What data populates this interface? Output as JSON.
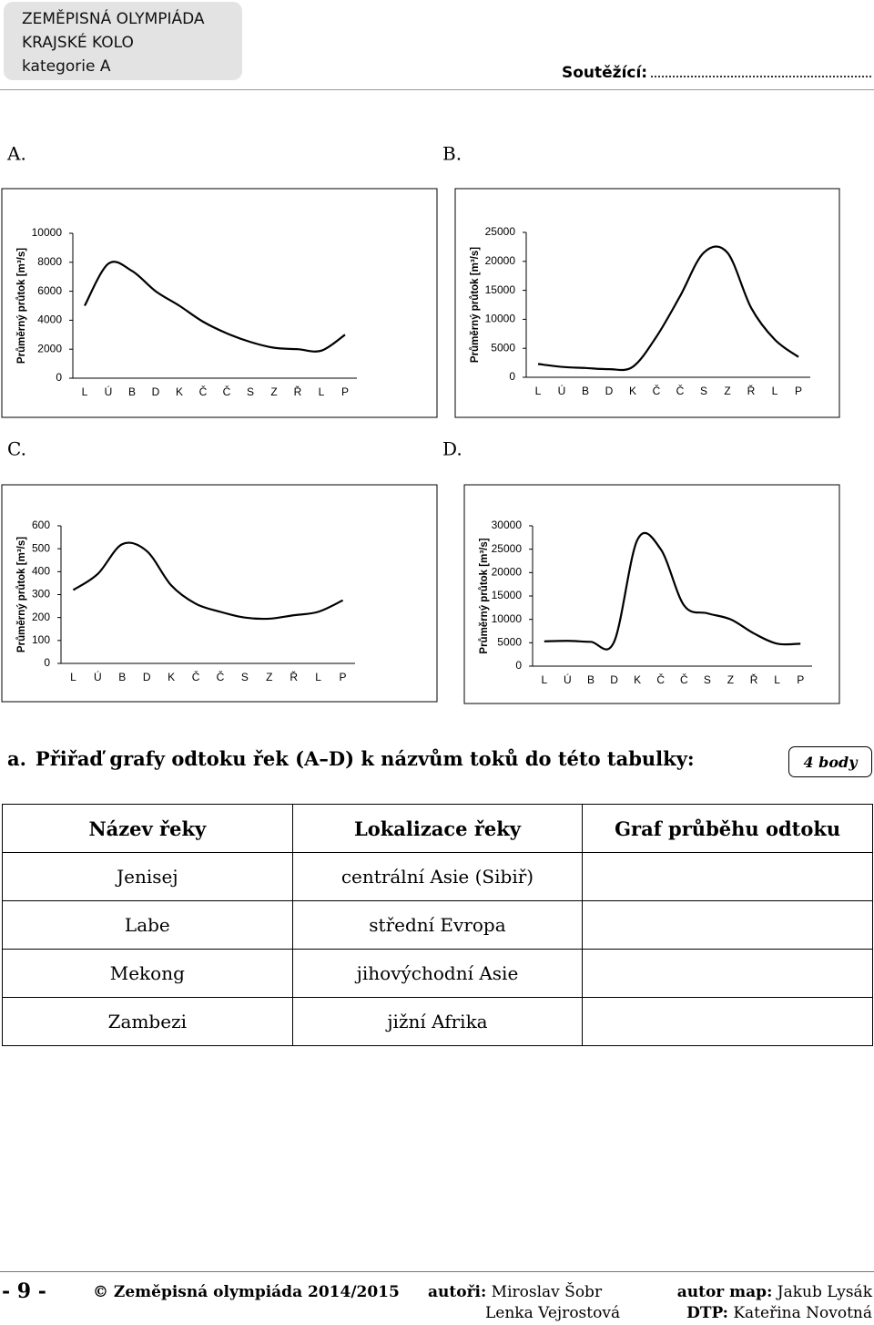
{
  "header": {
    "title": "ZEMĚPISNÁ OLYMPIÁDA",
    "round": "KRAJSKÉ KOLO",
    "category": "kategorie A",
    "contestant": "Soutěžící:"
  },
  "chart_data": [
    {
      "type": "line",
      "label": "A.",
      "ylabel": "Průměrný průtok [m³/s]",
      "categories": [
        "L",
        "Ú",
        "B",
        "D",
        "K",
        "Č",
        "Č",
        "S",
        "Z",
        "Ř",
        "L",
        "P"
      ],
      "values": [
        5000,
        7900,
        7400,
        6000,
        5000,
        3900,
        3100,
        2500,
        2100,
        2000,
        1900,
        3000
      ],
      "color": "#000000",
      "ylim": [
        0,
        10000
      ],
      "yticks": [
        0,
        2000,
        4000,
        6000,
        8000,
        10000
      ]
    },
    {
      "type": "line",
      "label": "B.",
      "ylabel": "Průměrný průtok [m³/s]",
      "categories": [
        "L",
        "Ú",
        "B",
        "D",
        "K",
        "Č",
        "Č",
        "S",
        "Z",
        "Ř",
        "L",
        "P"
      ],
      "values": [
        2300,
        1800,
        1600,
        1400,
        1800,
        7000,
        14000,
        21500,
        21500,
        12000,
        6500,
        3500
      ],
      "color": "#000000",
      "ylim": [
        0,
        25000
      ],
      "yticks": [
        0,
        5000,
        10000,
        15000,
        20000,
        25000
      ]
    },
    {
      "type": "line",
      "label": "C.",
      "ylabel": "Průměrný průtok [m³/s]",
      "categories": [
        "L",
        "Ú",
        "B",
        "D",
        "K",
        "Č",
        "Č",
        "S",
        "Z",
        "Ř",
        "L",
        "P"
      ],
      "values": [
        320,
        390,
        520,
        490,
        340,
        260,
        225,
        200,
        195,
        210,
        225,
        275
      ],
      "color": "#000000",
      "ylim": [
        0,
        600
      ],
      "yticks": [
        0,
        100,
        200,
        300,
        400,
        500,
        600
      ]
    },
    {
      "type": "line",
      "label": "D.",
      "ylabel": "Průměrný průtok [m³/s]",
      "categories": [
        "L",
        "Ú",
        "B",
        "D",
        "K",
        "Č",
        "Č",
        "S",
        "Z",
        "Ř",
        "L",
        "P"
      ],
      "values": [
        5300,
        5400,
        5200,
        5200,
        27000,
        25000,
        13000,
        11300,
        10000,
        7000,
        4800,
        4800
      ],
      "color": "#000000",
      "ylim": [
        0,
        30000
      ],
      "yticks": [
        0,
        5000,
        10000,
        15000,
        20000,
        25000,
        30000
      ]
    }
  ],
  "task": {
    "letter": "a.",
    "text": "Přiřaď grafy odtoku řek (A–D) k názvům toků do této tabulky:",
    "points": "4 body"
  },
  "table": {
    "header": [
      "Název řeky",
      "Lokalizace řeky",
      "Graf průběhu odtoku"
    ],
    "rows": [
      [
        "Jenisej",
        "centrální Asie (Sibiř)"
      ],
      [
        "Labe",
        "střední Evropa"
      ],
      [
        "Mekong",
        "jihovýchodní Asie"
      ],
      [
        "Zambezi",
        "jižní Afrika"
      ]
    ]
  },
  "footer": {
    "page": "- 9 -",
    "copyright": "© Zeměpisná olympiáda 2014/2015",
    "authors_label": "autoři:",
    "authors": [
      "Miroslav Šobr",
      "Lenka Vejrostová"
    ],
    "maps_label": "autor map:",
    "maps": "Jakub Lysák",
    "dtp_label": "DTP:",
    "dtp": "Kateřina Novotná"
  }
}
